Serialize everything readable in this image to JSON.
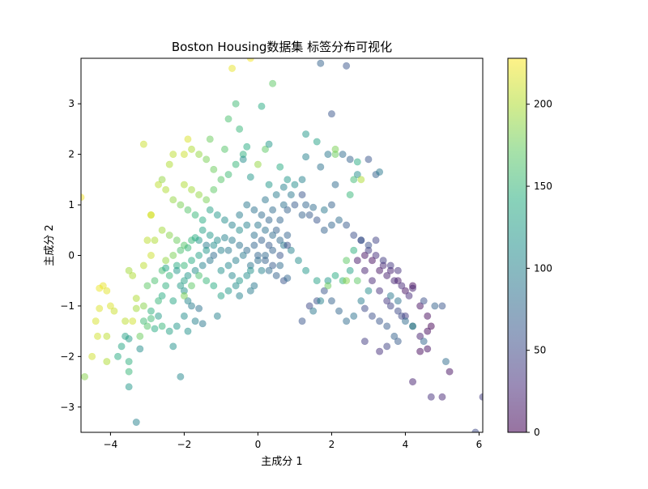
{
  "chart_data": {
    "type": "scatter",
    "title": "Boston Housing数据集 标签分布可视化",
    "xlabel": "主成分 1",
    "ylabel": "主成分 2",
    "xlim": [
      -4.8,
      6.1
    ],
    "ylim": [
      -3.5,
      3.9
    ],
    "xticks": [
      -4,
      -2,
      0,
      2,
      4,
      6
    ],
    "yticks": [
      -3,
      -2,
      -1,
      0,
      1,
      2,
      3
    ],
    "grid": false,
    "legend": "none",
    "colormap": "viridis",
    "colorbar": {
      "range": [
        0,
        228
      ],
      "ticks": [
        0,
        50,
        100,
        150,
        200
      ]
    },
    "point_alpha": 0.5,
    "points": [
      [
        -4.2,
        -0.6,
        220
      ],
      [
        -4.3,
        -0.65,
        222
      ],
      [
        -4.1,
        -0.7,
        218
      ],
      [
        -4.0,
        -1.0,
        215
      ],
      [
        -3.9,
        -1.1,
        210
      ],
      [
        -4.3,
        -1.05,
        216
      ],
      [
        -4.4,
        -1.3,
        214
      ],
      [
        -4.1,
        -1.6,
        205
      ],
      [
        -4.35,
        -1.6,
        212
      ],
      [
        -4.5,
        -2.0,
        211
      ],
      [
        -4.1,
        -2.1,
        200
      ],
      [
        -3.8,
        -2.0,
        140
      ],
      [
        -3.7,
        -1.8,
        135
      ],
      [
        -3.6,
        -1.6,
        130
      ],
      [
        -3.5,
        -1.65,
        125
      ],
      [
        -3.4,
        -1.3,
        212
      ],
      [
        -3.6,
        -1.3,
        205
      ],
      [
        -3.3,
        -0.85,
        200
      ],
      [
        -3.3,
        -1.05,
        195
      ],
      [
        -3.1,
        -1.0,
        185
      ],
      [
        -3.2,
        -1.6,
        175
      ],
      [
        -3.0,
        -1.4,
        165
      ],
      [
        -2.9,
        -1.25,
        155
      ],
      [
        -2.7,
        -0.9,
        150
      ],
      [
        -2.5,
        -0.6,
        145
      ],
      [
        -2.6,
        -0.8,
        140
      ],
      [
        -2.3,
        -0.9,
        135
      ],
      [
        -2.1,
        -0.6,
        125
      ],
      [
        -2.0,
        -0.7,
        115
      ],
      [
        -1.9,
        -0.9,
        105
      ],
      [
        -1.8,
        -1.0,
        95
      ],
      [
        -1.6,
        -1.05,
        85
      ],
      [
        -2.4,
        -0.4,
        150
      ],
      [
        -2.6,
        -0.3,
        158
      ],
      [
        -2.2,
        -0.2,
        140
      ],
      [
        -2.0,
        -0.5,
        130
      ],
      [
        -1.9,
        -0.4,
        120
      ],
      [
        -1.7,
        -0.3,
        110
      ],
      [
        -1.5,
        -0.2,
        100
      ],
      [
        -1.3,
        -0.1,
        90
      ],
      [
        -1.2,
        0.0,
        80
      ],
      [
        -1.4,
        0.2,
        95
      ],
      [
        -1.6,
        0.3,
        120
      ],
      [
        -1.8,
        0.3,
        150
      ],
      [
        -2.0,
        0.2,
        165
      ],
      [
        -2.2,
        0.3,
        175
      ],
      [
        -2.4,
        0.4,
        185
      ],
      [
        -2.6,
        0.5,
        195
      ],
      [
        -2.8,
        0.3,
        200
      ],
      [
        -2.9,
        0.0,
        210
      ],
      [
        -3.1,
        -0.2,
        205
      ],
      [
        -3.4,
        -0.4,
        200
      ],
      [
        -3.5,
        -0.3,
        195
      ],
      [
        -2.5,
        -0.1,
        190
      ],
      [
        -2.3,
        0.0,
        180
      ],
      [
        -2.1,
        0.1,
        160
      ],
      [
        -1.9,
        0.15,
        150
      ],
      [
        -1.7,
        0.35,
        140
      ],
      [
        -1.5,
        0.5,
        130
      ],
      [
        -1.3,
        0.4,
        120
      ],
      [
        -1.1,
        0.3,
        110
      ],
      [
        -0.9,
        0.35,
        100
      ],
      [
        -0.7,
        0.3,
        95
      ],
      [
        -0.5,
        0.2,
        85
      ],
      [
        -0.3,
        0.1,
        80
      ],
      [
        -0.1,
        0.2,
        75
      ],
      [
        0.1,
        0.3,
        70
      ],
      [
        0.3,
        0.2,
        65
      ],
      [
        0.4,
        0.1,
        72
      ],
      [
        0.2,
        0.0,
        78
      ],
      [
        0.0,
        -0.1,
        82
      ],
      [
        -0.2,
        -0.2,
        88
      ],
      [
        -0.4,
        0.0,
        92
      ],
      [
        -0.6,
        -0.1,
        98
      ],
      [
        -0.8,
        -0.2,
        105
      ],
      [
        -1.0,
        -0.3,
        115
      ],
      [
        -0.5,
        -0.5,
        120
      ],
      [
        -0.3,
        -0.4,
        110
      ],
      [
        0.1,
        -0.3,
        100
      ],
      [
        0.6,
        0.3,
        78
      ],
      [
        0.8,
        0.4,
        72
      ],
      [
        0.5,
        0.5,
        70
      ],
      [
        0.3,
        0.7,
        75
      ],
      [
        0.1,
        0.8,
        80
      ],
      [
        -0.1,
        0.9,
        85
      ],
      [
        -0.3,
        1.0,
        90
      ],
      [
        -0.5,
        0.8,
        95
      ],
      [
        -0.7,
        0.6,
        100
      ],
      [
        -0.9,
        0.7,
        110
      ],
      [
        -1.1,
        0.8,
        120
      ],
      [
        -1.3,
        0.9,
        130
      ],
      [
        -1.5,
        0.7,
        140
      ],
      [
        -1.7,
        0.8,
        150
      ],
      [
        -1.9,
        0.9,
        165
      ],
      [
        -2.1,
        1.0,
        180
      ],
      [
        -2.3,
        1.1,
        190
      ],
      [
        -2.5,
        1.3,
        200
      ],
      [
        -2.7,
        1.4,
        205
      ],
      [
        -2.9,
        0.8,
        210
      ],
      [
        -2.0,
        1.4,
        200
      ],
      [
        -1.8,
        1.3,
        195
      ],
      [
        -1.6,
        1.2,
        190
      ],
      [
        -1.4,
        1.1,
        180
      ],
      [
        -1.2,
        1.3,
        170
      ],
      [
        -1.0,
        1.5,
        165
      ],
      [
        -0.8,
        1.6,
        155
      ],
      [
        -0.6,
        1.8,
        150
      ],
      [
        -0.4,
        2.0,
        145
      ],
      [
        -0.3,
        2.15,
        140
      ],
      [
        -1.2,
        1.7,
        175
      ],
      [
        -1.4,
        1.9,
        180
      ],
      [
        -1.6,
        2.0,
        190
      ],
      [
        -1.8,
        2.1,
        200
      ],
      [
        -2.0,
        2.0,
        210
      ],
      [
        -2.3,
        2.0,
        205
      ],
      [
        -1.9,
        2.3,
        215
      ],
      [
        -0.9,
        2.1,
        165
      ],
      [
        -1.3,
        2.3,
        175
      ],
      [
        -0.8,
        2.7,
        160
      ],
      [
        -0.5,
        2.5,
        150
      ],
      [
        -0.6,
        3.0,
        155
      ],
      [
        0.1,
        2.95,
        140
      ],
      [
        0.4,
        3.4,
        170
      ],
      [
        -0.2,
        3.9,
        225
      ],
      [
        -0.7,
        3.7,
        220
      ],
      [
        -3.1,
        2.2,
        210
      ],
      [
        -2.9,
        0.8,
        215
      ],
      [
        -3.0,
        0.3,
        205
      ],
      [
        -2.6,
        1.5,
        190
      ],
      [
        -2.4,
        1.8,
        200
      ],
      [
        -4.8,
        1.15,
        225
      ],
      [
        -4.7,
        -2.4,
        185
      ],
      [
        -3.3,
        -3.3,
        100
      ],
      [
        -3.5,
        -2.6,
        120
      ],
      [
        -3.5,
        -2.3,
        150
      ],
      [
        -3.5,
        -2.1,
        145
      ],
      [
        -3.2,
        -1.85,
        110
      ],
      [
        -2.3,
        -1.8,
        115
      ],
      [
        -2.1,
        -2.4,
        105
      ],
      [
        0.2,
        2.1,
        170
      ],
      [
        0.3,
        2.2,
        120
      ],
      [
        -0.4,
        1.9,
        110
      ],
      [
        0.6,
        1.75,
        140
      ],
      [
        0.8,
        1.5,
        120
      ],
      [
        1.0,
        1.4,
        110
      ],
      [
        1.2,
        1.5,
        100
      ],
      [
        0.9,
        1.2,
        90
      ],
      [
        0.7,
        1.0,
        85
      ],
      [
        0.4,
        0.9,
        80
      ],
      [
        0.2,
        1.1,
        88
      ],
      [
        0.5,
        1.2,
        95
      ],
      [
        0.7,
        1.35,
        100
      ],
      [
        -0.2,
        1.55,
        120
      ],
      [
        0.0,
        1.8,
        190
      ],
      [
        0.3,
        1.4,
        120
      ],
      [
        1.3,
        2.4,
        120
      ],
      [
        1.3,
        1.95,
        100
      ],
      [
        1.6,
        2.25,
        130
      ],
      [
        1.7,
        1.75,
        85
      ],
      [
        1.9,
        2.0,
        90
      ],
      [
        2.1,
        2.0,
        175
      ],
      [
        2.1,
        2.1,
        180
      ],
      [
        2.3,
        2.0,
        80
      ],
      [
        2.5,
        1.9,
        70
      ],
      [
        2.7,
        1.6,
        110
      ],
      [
        2.7,
        1.85,
        140
      ],
      [
        3.0,
        1.9,
        60
      ],
      [
        3.2,
        1.6,
        70
      ],
      [
        3.3,
        1.65,
        90
      ],
      [
        2.0,
        2.8,
        60
      ],
      [
        1.7,
        3.8,
        70
      ],
      [
        2.4,
        3.75,
        60
      ],
      [
        2.6,
        1.5,
        155
      ],
      [
        2.8,
        1.5,
        200
      ],
      [
        2.5,
        1.2,
        150
      ],
      [
        2.1,
        1.4,
        80
      ],
      [
        2.0,
        1.0,
        70
      ],
      [
        1.8,
        0.9,
        90
      ],
      [
        1.5,
        0.95,
        80
      ],
      [
        1.3,
        1.0,
        75
      ],
      [
        1.2,
        0.8,
        70
      ],
      [
        1.4,
        0.8,
        65
      ],
      [
        1.6,
        0.7,
        60
      ],
      [
        1.8,
        0.5,
        70
      ],
      [
        2.0,
        0.6,
        75
      ],
      [
        2.2,
        0.7,
        80
      ],
      [
        2.4,
        0.6,
        65
      ],
      [
        2.6,
        0.4,
        55
      ],
      [
        2.8,
        0.3,
        50
      ],
      [
        3.0,
        0.1,
        40
      ],
      [
        3.2,
        0.0,
        30
      ],
      [
        3.4,
        -0.2,
        25
      ],
      [
        3.6,
        -0.3,
        20
      ],
      [
        3.8,
        -0.5,
        15
      ],
      [
        4.0,
        -0.7,
        10
      ],
      [
        4.2,
        -0.6,
        5
      ],
      [
        4.4,
        -1.0,
        10
      ],
      [
        4.6,
        -1.2,
        5
      ],
      [
        4.7,
        -1.4,
        0
      ],
      [
        4.6,
        -1.5,
        5
      ],
      [
        4.4,
        -1.6,
        20
      ],
      [
        4.2,
        -1.4,
        30
      ],
      [
        4.0,
        -1.2,
        40
      ],
      [
        3.8,
        -1.1,
        50
      ],
      [
        3.6,
        -1.0,
        45
      ],
      [
        3.5,
        -0.9,
        35
      ],
      [
        3.3,
        -0.7,
        30
      ],
      [
        3.1,
        -0.5,
        25
      ],
      [
        2.9,
        -0.3,
        20
      ],
      [
        2.7,
        -0.1,
        15
      ],
      [
        2.9,
        0.0,
        10
      ],
      [
        3.1,
        -0.1,
        8
      ],
      [
        3.3,
        -0.3,
        12
      ],
      [
        3.5,
        -0.4,
        18
      ],
      [
        3.7,
        -0.5,
        22
      ],
      [
        3.9,
        -0.6,
        26
      ],
      [
        4.1,
        -0.8,
        28
      ],
      [
        3.0,
        -0.7,
        110
      ],
      [
        2.8,
        -0.9,
        95
      ],
      [
        2.6,
        -1.2,
        85
      ],
      [
        2.4,
        -1.3,
        80
      ],
      [
        2.2,
        -1.1,
        75
      ],
      [
        2.0,
        -0.9,
        70
      ],
      [
        1.8,
        -0.7,
        60
      ],
      [
        1.6,
        -0.9,
        55
      ],
      [
        1.4,
        -1.0,
        50
      ],
      [
        1.2,
        -1.3,
        60
      ],
      [
        1.5,
        -1.1,
        90
      ],
      [
        1.7,
        -0.9,
        100
      ],
      [
        1.9,
        -0.5,
        120
      ],
      [
        2.1,
        -0.4,
        140
      ],
      [
        2.3,
        -0.5,
        150
      ],
      [
        2.5,
        -0.3,
        130
      ],
      [
        2.7,
        -0.5,
        170
      ],
      [
        2.4,
        -0.1,
        170
      ],
      [
        2.6,
        0.1,
        145
      ],
      [
        2.8,
        0.3,
        60
      ],
      [
        3.0,
        0.2,
        55
      ],
      [
        3.2,
        0.3,
        45
      ],
      [
        3.4,
        -0.1,
        40
      ],
      [
        3.6,
        -0.2,
        35
      ],
      [
        3.8,
        -0.3,
        30
      ],
      [
        4.2,
        -0.65,
        20
      ],
      [
        3.6,
        -0.8,
        90
      ],
      [
        3.8,
        -0.9,
        85
      ],
      [
        4.0,
        -1.3,
        80
      ],
      [
        4.2,
        -1.4,
        120
      ],
      [
        4.5,
        -1.7,
        75
      ],
      [
        3.7,
        -1.6,
        70
      ],
      [
        3.5,
        -1.4,
        65
      ],
      [
        3.3,
        -1.3,
        60
      ],
      [
        3.1,
        -1.2,
        55
      ],
      [
        2.9,
        -1.05,
        50
      ],
      [
        2.9,
        -1.7,
        40
      ],
      [
        3.3,
        -1.9,
        30
      ],
      [
        3.5,
        -1.8,
        45
      ],
      [
        3.8,
        -1.7,
        65
      ],
      [
        4.4,
        -1.9,
        5
      ],
      [
        4.6,
        -1.85,
        10
      ],
      [
        4.2,
        -2.5,
        20
      ],
      [
        4.7,
        -2.8,
        30
      ],
      [
        5.0,
        -2.8,
        25
      ],
      [
        5.1,
        -2.1,
        80
      ],
      [
        5.2,
        -2.3,
        10
      ],
      [
        5.9,
        -3.5,
        50
      ],
      [
        6.1,
        -2.8,
        40
      ],
      [
        5.0,
        -1.0,
        60
      ],
      [
        4.8,
        -1.0,
        70
      ],
      [
        4.5,
        -0.9,
        55
      ],
      [
        3.9,
        -1.2,
        50
      ],
      [
        2.4,
        -0.5,
        185
      ],
      [
        1.9,
        -0.6,
        175
      ],
      [
        1.6,
        -0.5,
        130
      ],
      [
        1.3,
        -0.3,
        120
      ],
      [
        1.1,
        -0.1,
        110
      ],
      [
        0.9,
        0.1,
        100
      ],
      [
        0.7,
        0.2,
        90
      ],
      [
        0.6,
        -0.2,
        80
      ],
      [
        0.5,
        -0.4,
        70
      ],
      [
        0.7,
        -0.5,
        60
      ],
      [
        0.8,
        -0.45,
        75
      ],
      [
        0.3,
        -0.3,
        80
      ],
      [
        -0.1,
        -0.6,
        90
      ],
      [
        -0.2,
        -0.7,
        95
      ],
      [
        -0.5,
        -0.8,
        100
      ],
      [
        -0.6,
        -0.6,
        110
      ],
      [
        -0.8,
        -0.7,
        120
      ],
      [
        -1.0,
        -0.8,
        130
      ],
      [
        -1.2,
        -0.6,
        140
      ],
      [
        -1.4,
        -0.5,
        150
      ],
      [
        -1.6,
        -0.4,
        160
      ],
      [
        -1.8,
        -0.6,
        170
      ],
      [
        -2.0,
        -0.8,
        180
      ],
      [
        -2.2,
        -0.3,
        120
      ],
      [
        -2.5,
        -0.25,
        135
      ],
      [
        -2.8,
        -0.5,
        160
      ],
      [
        -3.0,
        -0.6,
        170
      ],
      [
        -2.7,
        -1.2,
        125
      ],
      [
        -2.9,
        -1.1,
        145
      ],
      [
        -3.1,
        -1.3,
        155
      ],
      [
        -2.8,
        -1.45,
        140
      ],
      [
        -2.6,
        -1.4,
        150
      ],
      [
        -2.4,
        -1.5,
        130
      ],
      [
        -2.2,
        -1.4,
        120
      ],
      [
        -2.0,
        -1.2,
        110
      ],
      [
        -1.7,
        -1.3,
        100
      ],
      [
        -1.5,
        -1.35,
        90
      ],
      [
        -1.9,
        -1.5,
        115
      ],
      [
        -0.5,
        0.5,
        110
      ],
      [
        -0.3,
        0.6,
        100
      ],
      [
        0.0,
        0.6,
        90
      ],
      [
        0.2,
        0.5,
        85
      ],
      [
        0.4,
        0.4,
        80
      ],
      [
        0.6,
        0.7,
        75
      ],
      [
        0.8,
        0.9,
        70
      ],
      [
        1.0,
        1.0,
        65
      ],
      [
        1.2,
        1.2,
        60
      ],
      [
        -0.8,
        0.1,
        90
      ],
      [
        -1.0,
        0.1,
        100
      ],
      [
        -1.2,
        0.2,
        110
      ],
      [
        -1.4,
        0.1,
        120
      ],
      [
        -1.6,
        0.0,
        130
      ],
      [
        -1.8,
        -0.1,
        140
      ],
      [
        -2.0,
        -0.2,
        150
      ],
      [
        -0.1,
        0.4,
        85
      ],
      [
        0.0,
        0.0,
        75
      ],
      [
        0.2,
        -0.1,
        70
      ],
      [
        0.4,
        -0.2,
        65
      ],
      [
        0.6,
        0.0,
        60
      ],
      [
        0.8,
        0.2,
        55
      ],
      [
        -1.1,
        -1.2,
        100
      ],
      [
        -0.7,
        -0.4,
        105
      ],
      [
        -0.2,
        -0.3,
        115
      ]
    ]
  }
}
